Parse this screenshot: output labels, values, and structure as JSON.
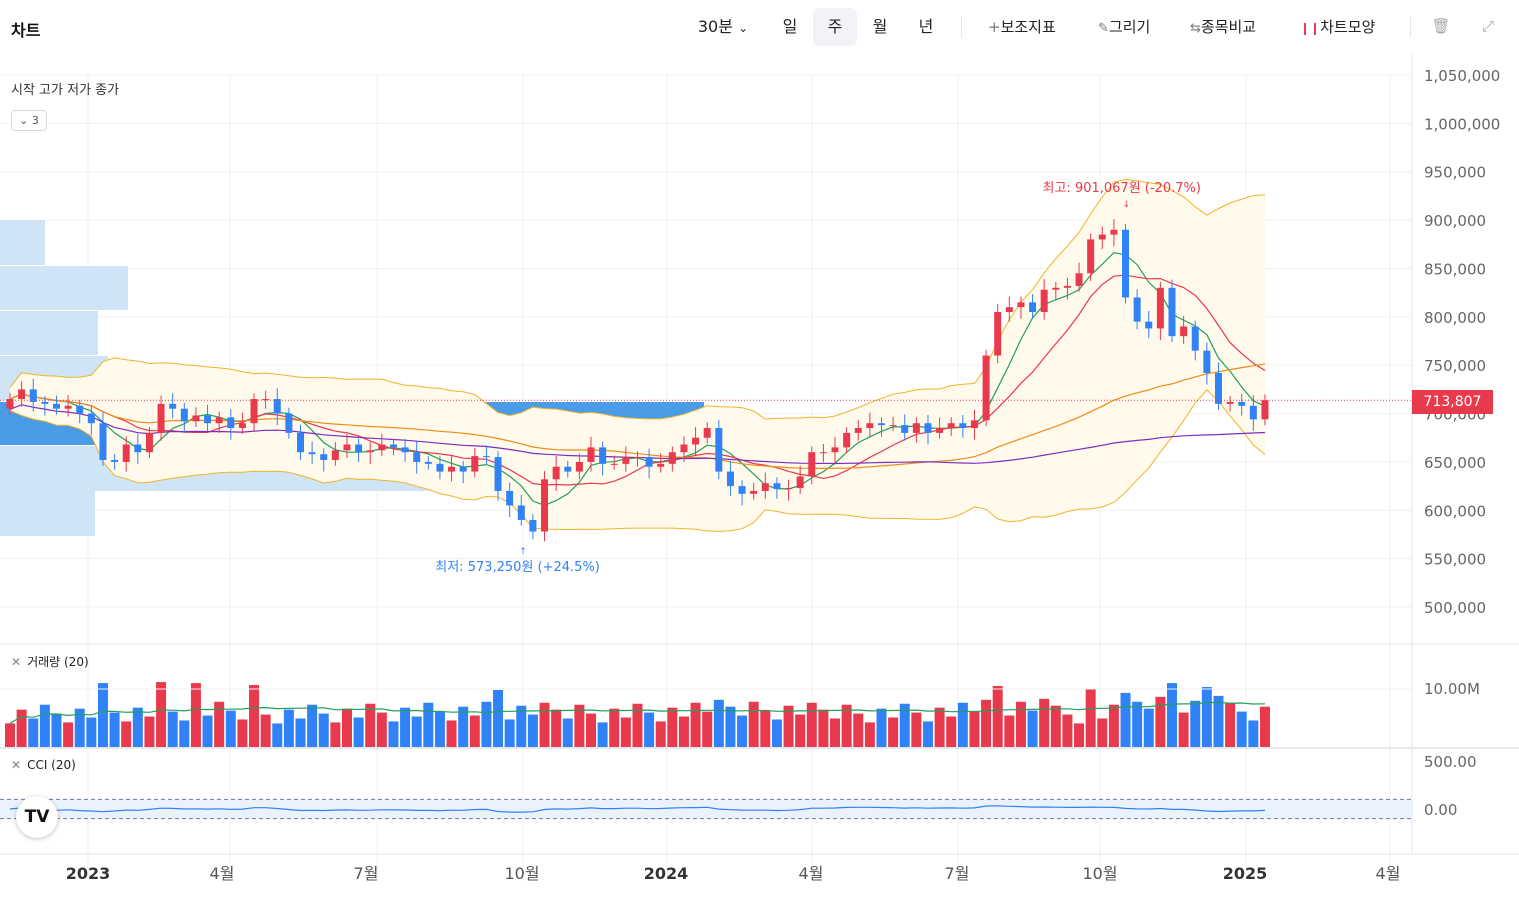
{
  "header": {
    "title": "차트",
    "interval_label": "30분",
    "periods": [
      "일",
      "주",
      "월",
      "년"
    ],
    "active_period": "주",
    "tools": [
      {
        "icon": "plus-icon",
        "label": "보조지표"
      },
      {
        "icon": "pencil-icon",
        "label": "그리기"
      },
      {
        "icon": "compare-icon",
        "label": "종목비교"
      },
      {
        "icon": "candles-icon",
        "label": "차트모양"
      }
    ]
  },
  "legend": {
    "ohlc_label": "시작 고가 저가 종가",
    "collapse_count": "3"
  },
  "panes": {
    "volume_label": "거래량 (20)",
    "cci_label": "CCI (20)"
  },
  "price_axis": {
    "ticks": [
      "1,050,000",
      "1,000,000",
      "950,000",
      "900,000",
      "850,000",
      "800,000",
      "750,000",
      "700,000",
      "650,000",
      "600,000",
      "550,000",
      "500,000"
    ],
    "tick_values": [
      1050000,
      1000000,
      950000,
      900000,
      850000,
      800000,
      750000,
      700000,
      650000,
      600000,
      550000,
      500000
    ]
  },
  "volume_axis": {
    "tick_label": "10.00M"
  },
  "cci_axis": {
    "ticks": [
      "500.00",
      "0.00"
    ]
  },
  "time_axis": {
    "labels": [
      {
        "text": "2023",
        "bold": true
      },
      {
        "text": "4월",
        "bold": false
      },
      {
        "text": "7월",
        "bold": false
      },
      {
        "text": "10월",
        "bold": false
      },
      {
        "text": "2024",
        "bold": true
      },
      {
        "text": "4월",
        "bold": false
      },
      {
        "text": "7월",
        "bold": false
      },
      {
        "text": "10월",
        "bold": false
      },
      {
        "text": "2025",
        "bold": true
      },
      {
        "text": "4월",
        "bold": false
      }
    ]
  },
  "current_price": "713,807",
  "annotations": {
    "high": "최고: 901,067원 (-20.7%)",
    "low": "최저: 573,250원 (+24.5%)"
  },
  "colors": {
    "up": "#e8394d",
    "down": "#3182f6",
    "ma_green": "#21a05a",
    "ma_red": "#e8394d",
    "ma_orange": "#f08c1a",
    "ma_purple": "#7b2cbf",
    "bollinger": "#f0b428",
    "volume_ma": "#21a05a",
    "cci": "#3182f6"
  },
  "chart_data": {
    "type": "candlestick",
    "interval": "weekly",
    "x_range": [
      "2022-11",
      "2025-05"
    ],
    "ylim": [
      480000,
      1060000
    ],
    "close": [
      715000,
      725000,
      712000,
      710000,
      705000,
      708000,
      700000,
      690000,
      652000,
      650000,
      668000,
      660000,
      680000,
      710000,
      705000,
      692000,
      698000,
      690000,
      696000,
      685000,
      690000,
      715000,
      715000,
      700000,
      680000,
      660000,
      658000,
      652000,
      662000,
      668000,
      660000,
      662000,
      668000,
      665000,
      660000,
      650000,
      648000,
      640000,
      645000,
      640000,
      656000,
      655000,
      620000,
      605000,
      590000,
      578000,
      632000,
      645000,
      640000,
      650000,
      665000,
      648000,
      648000,
      655000,
      655000,
      645000,
      648000,
      660000,
      668000,
      675000,
      685000,
      640000,
      625000,
      617000,
      620000,
      628000,
      622000,
      623000,
      635000,
      660000,
      660000,
      665000,
      680000,
      685000,
      690000,
      688000,
      688000,
      680000,
      690000,
      680000,
      685000,
      690000,
      685000,
      693000,
      760000,
      805000,
      810000,
      815000,
      805000,
      828000,
      830000,
      832000,
      845000,
      880000,
      885000,
      890000,
      820000,
      795000,
      788000,
      830000,
      780000,
      790000,
      765000,
      742000,
      710000,
      712000,
      708000,
      694000,
      713807
    ],
    "sma_bands": "bollinger(20,2) + moving averages 5/20/60/120",
    "volume_max_label": "10.00M",
    "cci_range": [
      -250,
      400
    ],
    "high_annotation": 901067,
    "low_annotation": 573250
  }
}
